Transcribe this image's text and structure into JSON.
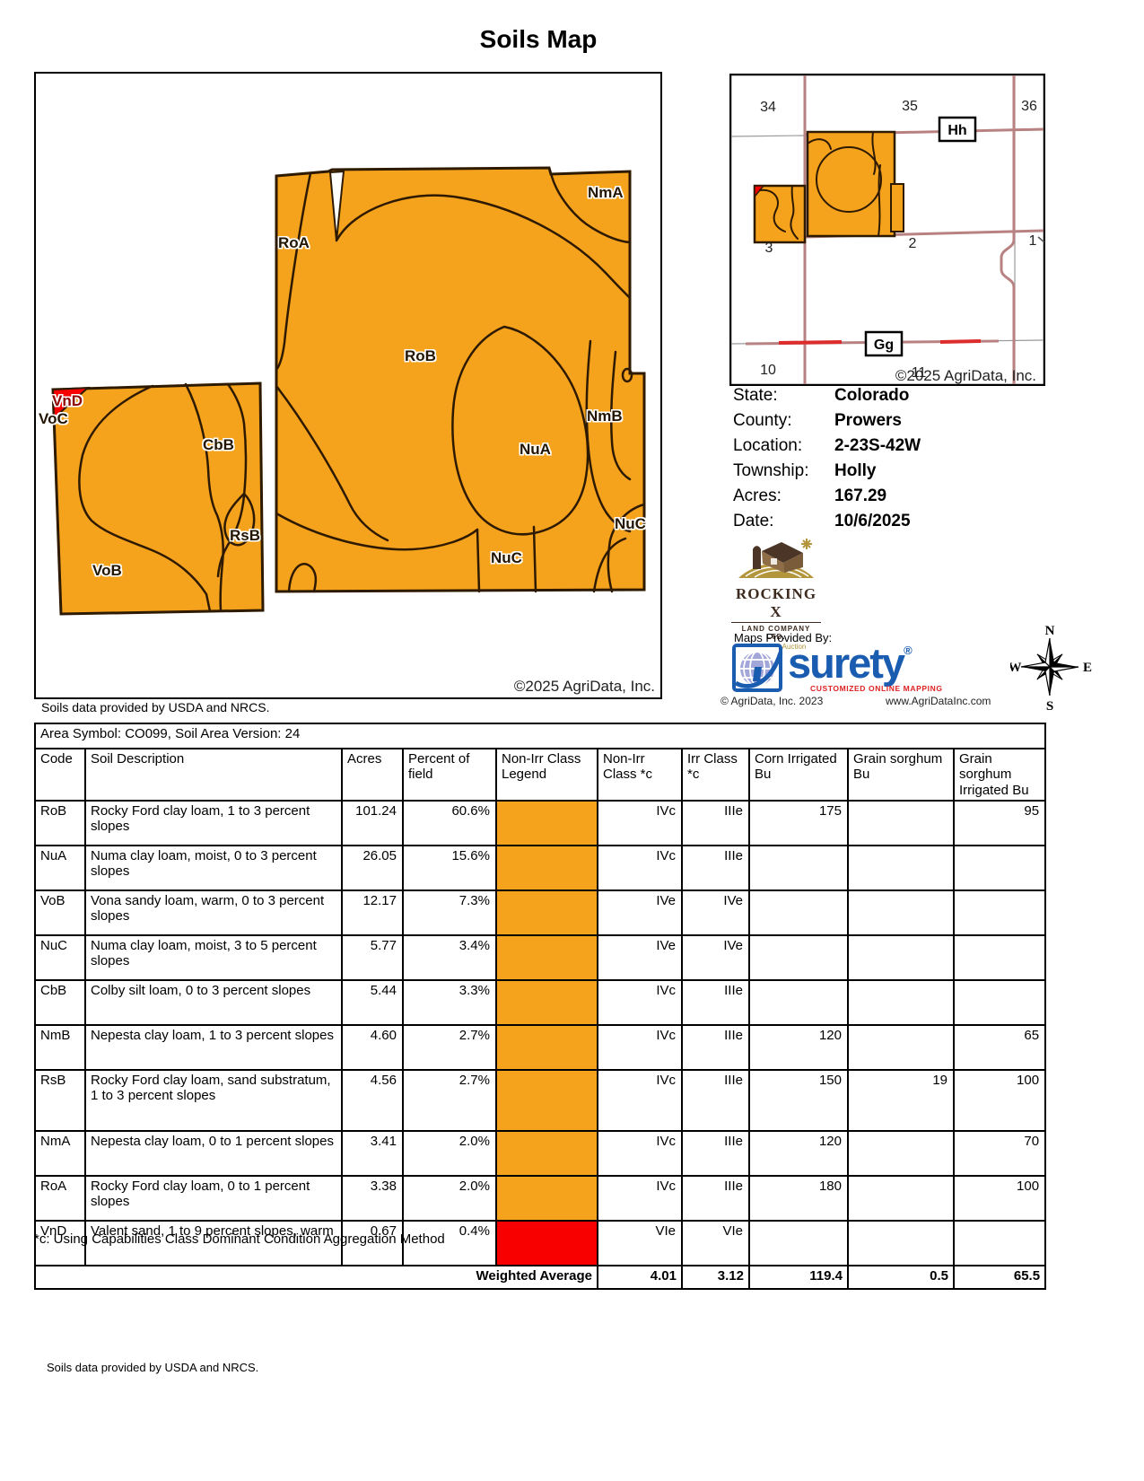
{
  "title": "Soils Map",
  "colors": {
    "soil_orange": "#F5A21D",
    "soil_red": "#F80000",
    "map_line": "#2E1A00",
    "road": "#B98282",
    "road_red": "#DD2C2C",
    "grid_gray": "#9A9A9A",
    "surety_blue": "#1A5DB0",
    "surety_globe": "#A3A6D8",
    "surety_red": "#DD2222",
    "rx_brown": "#4A3526",
    "rx_gold": "#B3953C"
  },
  "map": {
    "labels": [
      {
        "code": "NmA"
      },
      {
        "code": "RoA"
      },
      {
        "code": "RoB"
      },
      {
        "code": "NmB"
      },
      {
        "code": "NuA"
      },
      {
        "code": "NuC"
      },
      {
        "code": "NuC"
      },
      {
        "code": "VnD"
      },
      {
        "code": "VoC"
      },
      {
        "code": "CbB"
      },
      {
        "code": "RsB"
      },
      {
        "code": "VoB"
      }
    ],
    "copyright": "©2025 AgriData, Inc."
  },
  "locator": {
    "sections": [
      "34",
      "35",
      "36",
      "3",
      "2",
      "1",
      "10",
      "11"
    ],
    "roads": [
      "Hh",
      "Gg"
    ],
    "copyright": "©2025 AgriData, Inc."
  },
  "info": {
    "rows": [
      {
        "label": "State:",
        "value": "Colorado"
      },
      {
        "label": "County:",
        "value": "Prowers"
      },
      {
        "label": "Location:",
        "value": "2-23S-42W"
      },
      {
        "label": "Township:",
        "value": "Holly"
      },
      {
        "label": "Acres:",
        "value": "167.29"
      },
      {
        "label": "Date:",
        "value": "10/6/2025"
      }
    ]
  },
  "branding": {
    "rocking_x": {
      "name": "ROCKING X",
      "subtitle": "LAND COMPANY LTD.",
      "tagline": "Realty and Auction"
    },
    "maps_provided_by": "Maps Provided By:",
    "surety": {
      "name": "surety",
      "registered": "®",
      "tagline": "CUSTOMIZED ONLINE MAPPING",
      "copyright": "© AgriData, Inc. 2023",
      "website": "www.AgriDataInc.com"
    }
  },
  "compass": {
    "n": "N",
    "e": "E",
    "s": "S",
    "w": "W"
  },
  "soils_note": "Soils data provided by USDA and NRCS.",
  "table": {
    "area_symbol": "Area Symbol: CO099, Soil Area Version: 24",
    "headers": [
      "Code",
      "Soil Description",
      "Acres",
      "Percent of field",
      "Non-Irr Class Legend",
      "Non-Irr Class *c",
      "Irr Class *c",
      "Corn Irrigated Bu",
      "Grain sorghum Bu",
      "Grain sorghum Irrigated Bu"
    ],
    "rows": [
      {
        "code": "RoB",
        "description": "Rocky Ford clay loam, 1 to 3 percent slopes",
        "acres": "101.24",
        "percent": "60.6%",
        "legend_color": "#F5A21D",
        "non_irr": "IVc",
        "irr": "IIIe",
        "corn": "175",
        "grain_sorghum": "",
        "grain_sorghum_irr": "95"
      },
      {
        "code": "NuA",
        "description": "Numa clay loam, moist, 0 to 3 percent slopes",
        "acres": "26.05",
        "percent": "15.6%",
        "legend_color": "#F5A21D",
        "non_irr": "IVc",
        "irr": "IIIe",
        "corn": "",
        "grain_sorghum": "",
        "grain_sorghum_irr": ""
      },
      {
        "code": "VoB",
        "description": "Vona sandy loam, warm, 0 to 3 percent slopes",
        "acres": "12.17",
        "percent": "7.3%",
        "legend_color": "#F5A21D",
        "non_irr": "IVe",
        "irr": "IVe",
        "corn": "",
        "grain_sorghum": "",
        "grain_sorghum_irr": ""
      },
      {
        "code": "NuC",
        "description": "Numa clay loam, moist, 3 to 5 percent slopes",
        "acres": "5.77",
        "percent": "3.4%",
        "legend_color": "#F5A21D",
        "non_irr": "IVe",
        "irr": "IVe",
        "corn": "",
        "grain_sorghum": "",
        "grain_sorghum_irr": ""
      },
      {
        "code": "CbB",
        "description": "Colby silt loam, 0 to 3 percent slopes",
        "acres": "5.44",
        "percent": "3.3%",
        "legend_color": "#F5A21D",
        "non_irr": "IVc",
        "irr": "IIIe",
        "corn": "",
        "grain_sorghum": "",
        "grain_sorghum_irr": ""
      },
      {
        "code": "NmB",
        "description": "Nepesta clay loam, 1 to 3 percent slopes",
        "acres": "4.60",
        "percent": "2.7%",
        "legend_color": "#F5A21D",
        "non_irr": "IVc",
        "irr": "IIIe",
        "corn": "120",
        "grain_sorghum": "",
        "grain_sorghum_irr": "65"
      },
      {
        "code": "RsB",
        "description": "Rocky Ford clay loam, sand substratum, 1 to 3 percent slopes",
        "acres": "4.56",
        "percent": "2.7%",
        "legend_color": "#F5A21D",
        "non_irr": "IVc",
        "irr": "IIIe",
        "corn": "150",
        "grain_sorghum": "19",
        "grain_sorghum_irr": "100"
      },
      {
        "code": "NmA",
        "description": "Nepesta clay loam, 0 to 1 percent slopes",
        "acres": "3.41",
        "percent": "2.0%",
        "legend_color": "#F5A21D",
        "non_irr": "IVc",
        "irr": "IIIe",
        "corn": "120",
        "grain_sorghum": "",
        "grain_sorghum_irr": "70"
      },
      {
        "code": "RoA",
        "description": "Rocky Ford clay loam, 0 to 1 percent slopes",
        "acres": "3.38",
        "percent": "2.0%",
        "legend_color": "#F5A21D",
        "non_irr": "IVc",
        "irr": "IIIe",
        "corn": "180",
        "grain_sorghum": "",
        "grain_sorghum_irr": "100"
      },
      {
        "code": "VnD",
        "description": "Valent sand, 1 to 9 percent slopes, warm",
        "acres": "0.67",
        "percent": "0.4%",
        "legend_color": "#F80000",
        "non_irr": "VIe",
        "irr": "VIe",
        "corn": "",
        "grain_sorghum": "",
        "grain_sorghum_irr": ""
      }
    ],
    "weighted_average": {
      "label": "Weighted Average",
      "non_irr": "4.01",
      "irr": "3.12",
      "corn": "119.4",
      "grain_sorghum": "0.5",
      "grain_sorghum_irr": "65.5"
    },
    "footnote": "*c: Using Capabilities Class Dominant Condition Aggregation Method"
  }
}
